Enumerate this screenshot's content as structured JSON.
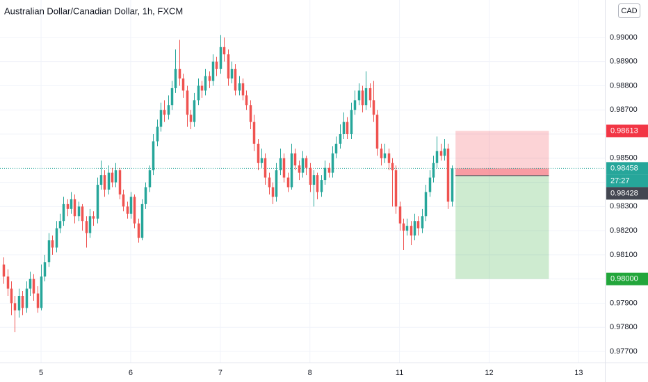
{
  "chart_data": {
    "type": "candlestick",
    "title": "Australian Dollar/Canadian Dollar, 1h, FXCM",
    "currency": "CAD",
    "up_color": "#26a69a",
    "down_color": "#ef5350",
    "grid": true,
    "xlim": [
      -1,
      161
    ],
    "ylim": [
      0.97654,
      0.99155
    ],
    "xticks": [
      {
        "value": 10,
        "label": "5"
      },
      {
        "value": 34,
        "label": "6"
      },
      {
        "value": 58,
        "label": "7"
      },
      {
        "value": 82,
        "label": "8"
      },
      {
        "value": 106,
        "label": "11"
      },
      {
        "value": 130,
        "label": "12"
      },
      {
        "value": 154,
        "label": "13"
      }
    ],
    "yticks": [
      {
        "value": 0.977,
        "label": "0.97700"
      },
      {
        "value": 0.978,
        "label": "0.97800"
      },
      {
        "value": 0.979,
        "label": "0.97900"
      },
      {
        "value": 0.98,
        "label": "0.98000"
      },
      {
        "value": 0.981,
        "label": "0.98100"
      },
      {
        "value": 0.982,
        "label": "0.98200"
      },
      {
        "value": 0.983,
        "label": "0.98300"
      },
      {
        "value": 0.984,
        "label": "0.98400"
      },
      {
        "value": 0.985,
        "label": "0.98500"
      },
      {
        "value": 0.986,
        "label": "0.98600"
      },
      {
        "value": 0.987,
        "label": "0.98700"
      },
      {
        "value": 0.988,
        "label": "0.98800"
      },
      {
        "value": 0.989,
        "label": "0.98900"
      },
      {
        "value": 0.99,
        "label": "0.99000"
      }
    ],
    "last_price": {
      "value": 0.98458,
      "label": "0.98458"
    },
    "countdown": "27:27",
    "position": {
      "start": 121,
      "end": 146,
      "stop": {
        "value": 0.98613,
        "label": "0.98613"
      },
      "entry": {
        "value": 0.98428,
        "label": "0.98428"
      },
      "target": {
        "value": 0.98,
        "label": "0.98000"
      }
    },
    "ohlc": [
      [
        0.9806,
        0.9809,
        0.9798,
        0.9801
      ],
      [
        0.9801,
        0.9804,
        0.9793,
        0.9796
      ],
      [
        0.9796,
        0.9799,
        0.9785,
        0.979
      ],
      [
        0.979,
        0.9793,
        0.9778,
        0.9787
      ],
      [
        0.9787,
        0.9796,
        0.9784,
        0.9793
      ],
      [
        0.9793,
        0.9795,
        0.9785,
        0.9788
      ],
      [
        0.9788,
        0.9799,
        0.9786,
        0.9796
      ],
      [
        0.9796,
        0.9803,
        0.9793,
        0.98
      ],
      [
        0.98,
        0.9802,
        0.9791,
        0.9794
      ],
      [
        0.9794,
        0.9797,
        0.9786,
        0.9788
      ],
      [
        0.9788,
        0.9806,
        0.9787,
        0.9801
      ],
      [
        0.9801,
        0.981,
        0.9799,
        0.9807
      ],
      [
        0.9807,
        0.9819,
        0.9805,
        0.9816
      ],
      [
        0.9816,
        0.9818,
        0.981,
        0.9813
      ],
      [
        0.9813,
        0.9824,
        0.9811,
        0.9821
      ],
      [
        0.9821,
        0.9827,
        0.9819,
        0.9824
      ],
      [
        0.9824,
        0.9834,
        0.9822,
        0.9831
      ],
      [
        0.9831,
        0.9833,
        0.9826,
        0.9829
      ],
      [
        0.9829,
        0.9836,
        0.9827,
        0.9833
      ],
      [
        0.9833,
        0.9835,
        0.9823,
        0.9826
      ],
      [
        0.9826,
        0.9832,
        0.9824,
        0.983
      ],
      [
        0.983,
        0.9831,
        0.982,
        0.9824
      ],
      [
        0.9824,
        0.9826,
        0.9813,
        0.9819
      ],
      [
        0.9819,
        0.9829,
        0.9817,
        0.9826
      ],
      [
        0.9826,
        0.9828,
        0.9822,
        0.9825
      ],
      [
        0.9825,
        0.9842,
        0.9823,
        0.9839
      ],
      [
        0.9839,
        0.9849,
        0.9837,
        0.9843
      ],
      [
        0.9843,
        0.9845,
        0.9834,
        0.9837
      ],
      [
        0.9837,
        0.9847,
        0.9835,
        0.9844
      ],
      [
        0.9844,
        0.9846,
        0.9838,
        0.984
      ],
      [
        0.984,
        0.9848,
        0.9838,
        0.9845
      ],
      [
        0.9845,
        0.9846,
        0.9833,
        0.9835
      ],
      [
        0.9835,
        0.9837,
        0.9828,
        0.983
      ],
      [
        0.983,
        0.9832,
        0.9825,
        0.9827
      ],
      [
        0.9827,
        0.9836,
        0.9825,
        0.9834
      ],
      [
        0.9834,
        0.9835,
        0.9821,
        0.9823
      ],
      [
        0.9823,
        0.9825,
        0.9815,
        0.9817
      ],
      [
        0.9817,
        0.9833,
        0.9816,
        0.9831
      ],
      [
        0.9831,
        0.984,
        0.9829,
        0.9838
      ],
      [
        0.9838,
        0.9847,
        0.9836,
        0.9845
      ],
      [
        0.9845,
        0.986,
        0.9843,
        0.9857
      ],
      [
        0.9857,
        0.9866,
        0.9855,
        0.9863
      ],
      [
        0.9863,
        0.9873,
        0.9861,
        0.987
      ],
      [
        0.987,
        0.9874,
        0.9865,
        0.9868
      ],
      [
        0.9868,
        0.9876,
        0.9866,
        0.9872
      ],
      [
        0.9872,
        0.9882,
        0.987,
        0.9879
      ],
      [
        0.9879,
        0.9895,
        0.9877,
        0.9887
      ],
      [
        0.9887,
        0.9899,
        0.988,
        0.9883
      ],
      [
        0.9883,
        0.9885,
        0.9875,
        0.9878
      ],
      [
        0.9878,
        0.988,
        0.9863,
        0.9868
      ],
      [
        0.9868,
        0.987,
        0.9862,
        0.9865
      ],
      [
        0.9865,
        0.9877,
        0.9863,
        0.9874
      ],
      [
        0.9874,
        0.9883,
        0.9872,
        0.988
      ],
      [
        0.988,
        0.9882,
        0.9875,
        0.9878
      ],
      [
        0.9878,
        0.9887,
        0.9876,
        0.9884
      ],
      [
        0.9884,
        0.9886,
        0.9879,
        0.9882
      ],
      [
        0.9882,
        0.9893,
        0.988,
        0.989
      ],
      [
        0.989,
        0.9892,
        0.9884,
        0.9887
      ],
      [
        0.9887,
        0.9901,
        0.9885,
        0.9896
      ],
      [
        0.9896,
        0.99,
        0.989,
        0.9893
      ],
      [
        0.9893,
        0.9895,
        0.988,
        0.9883
      ],
      [
        0.9883,
        0.989,
        0.9881,
        0.9887
      ],
      [
        0.9887,
        0.9889,
        0.9876,
        0.9878
      ],
      [
        0.9878,
        0.9884,
        0.9876,
        0.9881
      ],
      [
        0.9881,
        0.9883,
        0.9874,
        0.9876
      ],
      [
        0.9876,
        0.9878,
        0.987,
        0.9872
      ],
      [
        0.9872,
        0.9874,
        0.9862,
        0.9865
      ],
      [
        0.9865,
        0.9868,
        0.9853,
        0.9856
      ],
      [
        0.9856,
        0.9858,
        0.9845,
        0.9848
      ],
      [
        0.9848,
        0.9854,
        0.9846,
        0.985
      ],
      [
        0.985,
        0.9852,
        0.9839,
        0.9842
      ],
      [
        0.9842,
        0.9844,
        0.9835,
        0.9838
      ],
      [
        0.9838,
        0.984,
        0.9831,
        0.9834
      ],
      [
        0.9834,
        0.9848,
        0.9832,
        0.9845
      ],
      [
        0.9845,
        0.9854,
        0.9843,
        0.985
      ],
      [
        0.985,
        0.9852,
        0.984,
        0.9842
      ],
      [
        0.9842,
        0.9844,
        0.9836,
        0.9838
      ],
      [
        0.9838,
        0.9856,
        0.9837,
        0.9852
      ],
      [
        0.9852,
        0.9854,
        0.9845,
        0.9847
      ],
      [
        0.9847,
        0.9849,
        0.9841,
        0.9844
      ],
      [
        0.9844,
        0.9853,
        0.9842,
        0.985
      ],
      [
        0.985,
        0.9851,
        0.9843,
        0.9846
      ],
      [
        0.9846,
        0.9848,
        0.9836,
        0.9839
      ],
      [
        0.9839,
        0.9845,
        0.983,
        0.9843
      ],
      [
        0.9843,
        0.9844,
        0.9833,
        0.9836
      ],
      [
        0.9836,
        0.9843,
        0.9834,
        0.9841
      ],
      [
        0.9841,
        0.9849,
        0.9839,
        0.9846
      ],
      [
        0.9846,
        0.9848,
        0.9842,
        0.9844
      ],
      [
        0.9844,
        0.9855,
        0.9842,
        0.9852
      ],
      [
        0.9852,
        0.9859,
        0.985,
        0.9856
      ],
      [
        0.9856,
        0.9864,
        0.9854,
        0.986
      ],
      [
        0.986,
        0.9869,
        0.9858,
        0.9865
      ],
      [
        0.9865,
        0.9867,
        0.9858,
        0.986
      ],
      [
        0.986,
        0.9873,
        0.9858,
        0.987
      ],
      [
        0.987,
        0.9878,
        0.9868,
        0.9874
      ],
      [
        0.9874,
        0.9881,
        0.9872,
        0.9878
      ],
      [
        0.9878,
        0.988,
        0.9869,
        0.9872
      ],
      [
        0.9872,
        0.9886,
        0.987,
        0.9879
      ],
      [
        0.9879,
        0.9881,
        0.9871,
        0.9874
      ],
      [
        0.9874,
        0.9882,
        0.9865,
        0.9868
      ],
      [
        0.9868,
        0.987,
        0.9851,
        0.9854
      ],
      [
        0.9854,
        0.9856,
        0.9847,
        0.985
      ],
      [
        0.985,
        0.9856,
        0.9848,
        0.9852
      ],
      [
        0.9852,
        0.9854,
        0.9845,
        0.9848
      ],
      [
        0.9848,
        0.985,
        0.983,
        0.9845
      ],
      [
        0.9845,
        0.9847,
        0.9827,
        0.983
      ],
      [
        0.983,
        0.9832,
        0.982,
        0.9823
      ],
      [
        0.9823,
        0.9825,
        0.9812,
        0.982
      ],
      [
        0.982,
        0.9825,
        0.9818,
        0.9822
      ],
      [
        0.9822,
        0.9824,
        0.9814,
        0.9818
      ],
      [
        0.9818,
        0.9827,
        0.9816,
        0.9824
      ],
      [
        0.9824,
        0.9826,
        0.9818,
        0.9821
      ],
      [
        0.9821,
        0.9829,
        0.9819,
        0.9826
      ],
      [
        0.9826,
        0.9839,
        0.9824,
        0.9836
      ],
      [
        0.9836,
        0.9845,
        0.9834,
        0.9842
      ],
      [
        0.9842,
        0.9851,
        0.984,
        0.9848
      ],
      [
        0.9848,
        0.9859,
        0.9846,
        0.9853
      ],
      [
        0.9853,
        0.9856,
        0.9849,
        0.9851
      ],
      [
        0.9851,
        0.9858,
        0.9849,
        0.9854
      ],
      [
        0.9854,
        0.9856,
        0.9829,
        0.9832
      ],
      [
        0.9832,
        0.9847,
        0.983,
        0.98458
      ]
    ]
  }
}
